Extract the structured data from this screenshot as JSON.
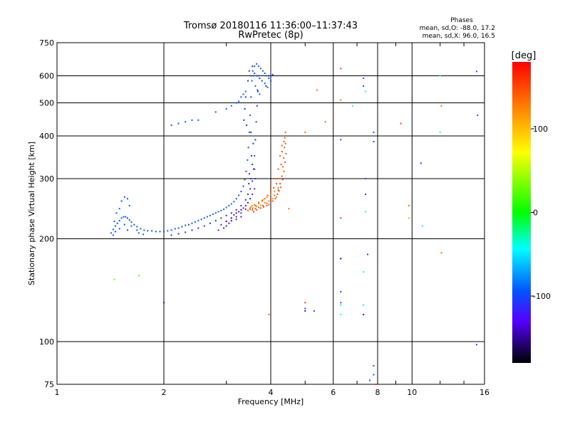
{
  "chart_data": {
    "type": "scatter",
    "title": "Tromsø 20180116 11:36:00–11:37:43",
    "subtitle": "RwPretec (8p)",
    "xlabel": "Frequency [MHz]",
    "ylabel": "Stationary phase Virtual Height [km]",
    "x_scale": "log",
    "y_scale": "log",
    "xlim": [
      1,
      16
    ],
    "ylim": [
      75,
      750
    ],
    "x_ticks": [
      1,
      2,
      4,
      6,
      8,
      10,
      16
    ],
    "y_ticks": [
      75,
      100,
      200,
      300,
      400,
      500,
      600,
      750
    ],
    "grid": true,
    "stats": {
      "heading": "Phases",
      "o_line": "mean, sd,O: -88.0, 17.2",
      "x_line": "mean, sd,X:  96.0, 16.5"
    },
    "colorbar": {
      "label": "[deg]",
      "range": [
        -180,
        180
      ],
      "ticks": [
        100,
        0,
        -100
      ],
      "colors": [
        "#ff0000",
        "#ff7f00",
        "#ffff00",
        "#00ff00",
        "#00ffff",
        "#0066ff",
        "#1c1cff",
        "#7f00ff",
        "#000000"
      ]
    },
    "series": [
      {
        "phase": -95,
        "points": [
          [
            1.42,
            208
          ],
          [
            1.44,
            213
          ],
          [
            1.46,
            218
          ],
          [
            1.48,
            222
          ],
          [
            1.5,
            226
          ],
          [
            1.52,
            230
          ],
          [
            1.54,
            232
          ],
          [
            1.56,
            232
          ],
          [
            1.58,
            230
          ],
          [
            1.6,
            227
          ],
          [
            1.62,
            224
          ],
          [
            1.65,
            220
          ],
          [
            1.68,
            217
          ],
          [
            1.72,
            214
          ],
          [
            1.76,
            212
          ],
          [
            1.8,
            211
          ],
          [
            1.85,
            211
          ],
          [
            1.9,
            210
          ],
          [
            1.95,
            210
          ],
          [
            2.0,
            210
          ],
          [
            2.05,
            211
          ],
          [
            2.1,
            212
          ],
          [
            2.15,
            214
          ],
          [
            2.2,
            215
          ],
          [
            2.25,
            217
          ],
          [
            2.3,
            219
          ],
          [
            2.35,
            220
          ],
          [
            2.4,
            222
          ],
          [
            2.45,
            224
          ],
          [
            2.5,
            226
          ],
          [
            2.55,
            228
          ],
          [
            2.6,
            230
          ],
          [
            2.65,
            232
          ],
          [
            2.7,
            234
          ],
          [
            2.75,
            236
          ],
          [
            2.8,
            238
          ],
          [
            2.85,
            240
          ],
          [
            2.9,
            242
          ],
          [
            2.95,
            244
          ],
          [
            3.0,
            247
          ],
          [
            3.05,
            250
          ],
          [
            3.1,
            253
          ],
          [
            3.15,
            257
          ],
          [
            3.2,
            262
          ],
          [
            3.25,
            268
          ],
          [
            3.3,
            275
          ],
          [
            3.35,
            285
          ],
          [
            3.38,
            298
          ],
          [
            3.41,
            315
          ],
          [
            3.44,
            340
          ],
          [
            3.46,
            370
          ],
          [
            3.48,
            410
          ],
          [
            3.5,
            460
          ],
          [
            3.52,
            520
          ],
          [
            3.54,
            580
          ],
          [
            3.56,
            620
          ],
          [
            3.6,
            640
          ],
          [
            3.65,
            650
          ],
          [
            3.7,
            640
          ],
          [
            3.75,
            630
          ],
          [
            3.8,
            620
          ],
          [
            3.85,
            610
          ],
          [
            3.9,
            600
          ],
          [
            3.95,
            590
          ],
          [
            4.0,
            580
          ],
          [
            4.02,
            600
          ],
          [
            3.62,
            560
          ],
          [
            3.67,
            545
          ],
          [
            3.72,
            530
          ],
          [
            3.58,
            600
          ],
          [
            3.7,
            600
          ],
          [
            3.85,
            570
          ],
          [
            3.92,
            555
          ],
          [
            3.3,
            520
          ],
          [
            3.25,
            505
          ],
          [
            3.4,
            540
          ],
          [
            3.35,
            530
          ],
          [
            2.1,
            430
          ],
          [
            2.2,
            435
          ],
          [
            2.3,
            440
          ],
          [
            2.4,
            445
          ],
          [
            2.5,
            445
          ],
          [
            2.8,
            470
          ],
          [
            3.0,
            480
          ],
          [
            3.1,
            490
          ],
          [
            3.2,
            500
          ],
          [
            1.52,
            258
          ],
          [
            1.55,
            265
          ],
          [
            1.58,
            262
          ],
          [
            1.6,
            250
          ],
          [
            1.5,
            245
          ],
          [
            1.47,
            238
          ],
          [
            1.45,
            225
          ],
          [
            1.55,
            220
          ],
          [
            1.62,
            218
          ],
          [
            1.68,
            212
          ],
          [
            1.7,
            208
          ],
          [
            1.75,
            206
          ],
          [
            1.58,
            212
          ],
          [
            1.5,
            214
          ],
          [
            1.46,
            210
          ],
          [
            1.44,
            205
          ]
        ]
      },
      {
        "phase": -115,
        "points": [
          [
            2.1,
            205
          ],
          [
            2.2,
            207
          ],
          [
            2.3,
            209
          ],
          [
            2.4,
            212
          ],
          [
            2.5,
            215
          ],
          [
            2.6,
            218
          ],
          [
            2.7,
            222
          ],
          [
            2.8,
            226
          ],
          [
            2.9,
            230
          ],
          [
            3.0,
            234
          ],
          [
            3.1,
            238
          ],
          [
            3.2,
            243
          ],
          [
            3.3,
            250
          ],
          [
            3.4,
            260
          ],
          [
            3.45,
            270
          ],
          [
            3.5,
            280
          ],
          [
            3.55,
            295
          ],
          [
            3.58,
            320
          ],
          [
            3.6,
            350
          ],
          [
            3.62,
            390
          ],
          [
            3.64,
            440
          ],
          [
            3.66,
            490
          ],
          [
            3.68,
            540
          ],
          [
            3.66,
            600
          ],
          [
            3.72,
            590
          ],
          [
            3.6,
            610
          ],
          [
            3.55,
            640
          ],
          [
            3.52,
            600
          ],
          [
            3.48,
            620
          ],
          [
            3.78,
            580
          ],
          [
            3.88,
            560
          ],
          [
            3.95,
            600
          ],
          [
            4.05,
            605
          ],
          [
            3.45,
            580
          ],
          [
            3.4,
            520
          ],
          [
            3.38,
            480
          ],
          [
            3.36,
            445
          ],
          [
            3.42,
            430
          ],
          [
            3.52,
            410
          ],
          [
            3.57,
            380
          ],
          [
            3.53,
            350
          ],
          [
            3.55,
            330
          ],
          [
            3.48,
            310
          ],
          [
            3.47,
            290
          ],
          [
            3.52,
            300
          ],
          [
            3.6,
            320
          ],
          [
            3.62,
            300
          ],
          [
            3.0,
            225
          ],
          [
            3.1,
            230
          ],
          [
            3.2,
            232
          ],
          [
            3.3,
            238
          ],
          [
            3.4,
            244
          ]
        ]
      },
      {
        "phase": -135,
        "points": [
          [
            2.9,
            220
          ],
          [
            3.0,
            225
          ],
          [
            3.1,
            230
          ],
          [
            3.15,
            235
          ],
          [
            3.2,
            238
          ],
          [
            3.25,
            240
          ],
          [
            3.3,
            243
          ],
          [
            3.35,
            246
          ],
          [
            3.4,
            250
          ],
          [
            3.45,
            255
          ],
          [
            3.5,
            262
          ],
          [
            3.55,
            270
          ],
          [
            3.6,
            280
          ],
          [
            3.3,
            232
          ],
          [
            3.2,
            228
          ],
          [
            3.1,
            226
          ],
          [
            3.05,
            222
          ],
          [
            3.0,
            218
          ],
          [
            2.95,
            215
          ],
          [
            2.85,
            212
          ]
        ]
      },
      {
        "phase": 150,
        "points": [
          [
            3.45,
            242
          ],
          [
            3.55,
            243
          ],
          [
            3.62,
            245
          ],
          [
            3.7,
            247
          ],
          [
            3.8,
            250
          ],
          [
            3.9,
            254
          ],
          [
            4.0,
            260
          ],
          [
            4.1,
            268
          ],
          [
            4.2,
            278
          ],
          [
            4.25,
            290
          ],
          [
            4.3,
            305
          ],
          [
            4.33,
            325
          ],
          [
            4.35,
            345
          ],
          [
            4.37,
            370
          ],
          [
            4.38,
            395
          ],
          [
            4.4,
            410
          ],
          [
            4.3,
            360
          ],
          [
            4.28,
            330
          ],
          [
            4.2,
            300
          ],
          [
            4.15,
            290
          ],
          [
            4.08,
            282
          ],
          [
            4.0,
            275
          ],
          [
            3.92,
            268
          ],
          [
            3.85,
            262
          ],
          [
            3.78,
            258
          ],
          [
            3.7,
            254
          ],
          [
            3.62,
            250
          ],
          [
            3.56,
            246
          ],
          [
            3.5,
            244
          ],
          [
            3.58,
            240
          ],
          [
            3.65,
            243
          ],
          [
            3.75,
            246
          ],
          [
            3.82,
            248
          ],
          [
            3.9,
            250
          ],
          [
            3.95,
            252
          ],
          [
            4.05,
            258
          ],
          [
            4.12,
            262
          ],
          [
            4.18,
            270
          ],
          [
            4.22,
            276
          ],
          [
            4.27,
            283
          ],
          [
            4.32,
            298
          ],
          [
            4.36,
            315
          ],
          [
            4.39,
            335
          ],
          [
            4.42,
            355
          ],
          [
            4.4,
            380
          ],
          [
            4.36,
            385
          ],
          [
            4.3,
            375
          ],
          [
            4.25,
            350
          ],
          [
            4.2,
            320
          ],
          [
            4.1,
            300
          ],
          [
            4.0,
            290
          ]
        ]
      },
      {
        "phase": 130,
        "points": [
          [
            3.5,
            246
          ],
          [
            3.6,
            252
          ],
          [
            3.7,
            256
          ],
          [
            3.8,
            260
          ],
          [
            3.9,
            265
          ],
          [
            4.0,
            270
          ],
          [
            4.1,
            275
          ],
          [
            4.2,
            282
          ],
          [
            4.15,
            265
          ],
          [
            4.05,
            262
          ],
          [
            3.95,
            258
          ],
          [
            3.85,
            255
          ],
          [
            3.75,
            251
          ],
          [
            3.65,
            249
          ],
          [
            3.55,
            250
          ],
          [
            3.52,
            248
          ]
        ]
      },
      {
        "phase": -100,
        "points": [
          [
            5.0,
            125
          ],
          [
            5.3,
            123
          ],
          [
            6.3,
            175
          ],
          [
            6.3,
            140
          ],
          [
            6.3,
            130
          ],
          [
            7.3,
            590
          ],
          [
            7.3,
            560
          ],
          [
            7.4,
            300
          ],
          [
            7.4,
            270
          ],
          [
            7.5,
            180
          ],
          [
            7.8,
            385
          ],
          [
            7.8,
            410
          ],
          [
            7.8,
            85
          ],
          [
            7.8,
            80
          ],
          [
            7.6,
            77
          ],
          [
            10.6,
            333
          ],
          [
            15.2,
            618
          ],
          [
            15.3,
            460
          ],
          [
            15.2,
            98
          ],
          [
            6.3,
            390
          ]
        ]
      },
      {
        "phase": -40,
        "points": [
          [
            6.3,
            128
          ],
          [
            7.3,
            160
          ],
          [
            7.3,
            128
          ],
          [
            7.4,
            240
          ],
          [
            7.4,
            540
          ],
          [
            6.3,
            120
          ],
          [
            10.7,
            218
          ],
          [
            12.0,
            600
          ],
          [
            12.0,
            410
          ],
          [
            6.8,
            490
          ]
        ]
      },
      {
        "phase": 30,
        "points": [
          [
            1.45,
            152
          ],
          [
            1.7,
            156
          ],
          [
            9.8,
            230
          ]
        ]
      },
      {
        "phase": 140,
        "points": [
          [
            3.95,
            120
          ],
          [
            4.5,
            245
          ],
          [
            5.0,
            410
          ],
          [
            5.4,
            545
          ],
          [
            5.7,
            440
          ],
          [
            9.8,
            250
          ],
          [
            12.1,
            490
          ],
          [
            12.1,
            182
          ],
          [
            8.0,
            160
          ],
          [
            6.3,
            510
          ]
        ]
      },
      {
        "phase": 160,
        "points": [
          [
            5.0,
            130
          ],
          [
            6.3,
            230
          ],
          [
            6.3,
            630
          ],
          [
            9.3,
            435
          ],
          [
            7.9,
            75
          ]
        ]
      },
      {
        "phase": -150,
        "points": [
          [
            2.0,
            130
          ],
          [
            5.0,
            123
          ],
          [
            7.3,
            120
          ],
          [
            6.3,
            175
          ]
        ]
      }
    ]
  }
}
